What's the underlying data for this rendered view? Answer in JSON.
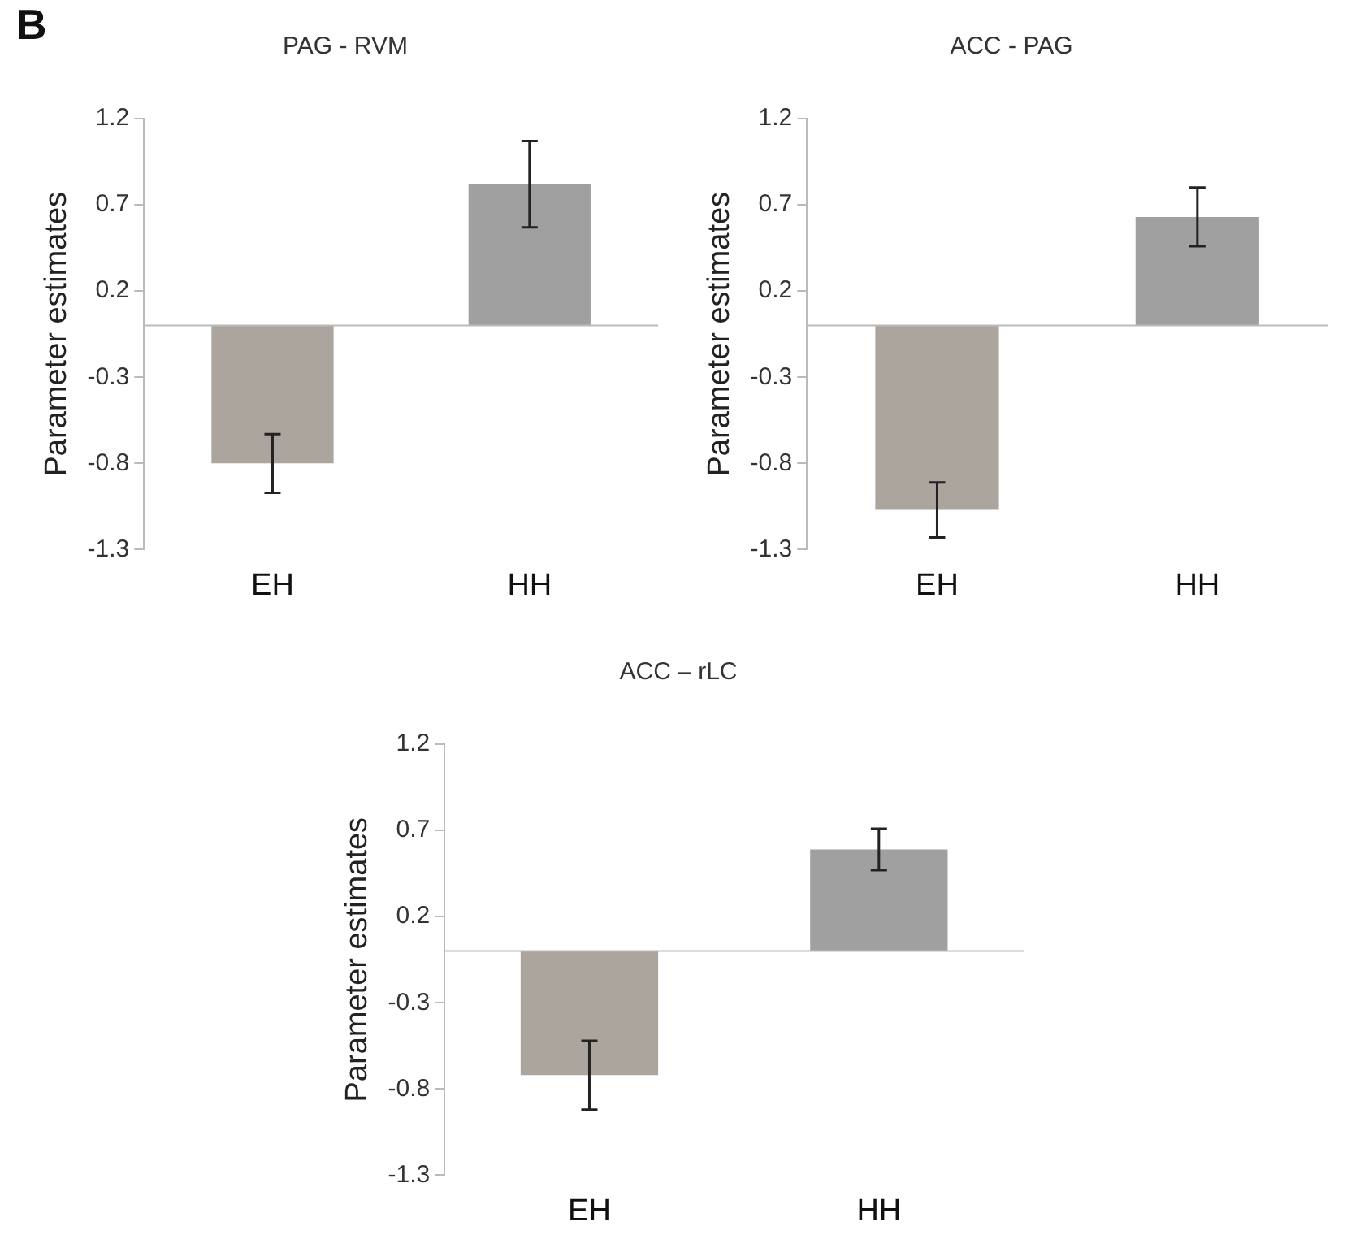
{
  "chart_data": [
    {
      "type": "bar",
      "title": "PAG - RVM",
      "ylabel": "Parameter estimates",
      "annotations": [
        "B"
      ],
      "categories": [
        "EH",
        "HH"
      ],
      "values": [
        -0.8,
        0.82
      ],
      "errors": [
        0.17,
        0.25
      ],
      "colors": [
        "#aba59e",
        "#a0a0a0"
      ],
      "ylim": [
        -1.3,
        1.2
      ],
      "yticks": [
        -1.3,
        -0.8,
        -0.3,
        0.2,
        0.7,
        1.2
      ],
      "grid": false,
      "legend": false
    },
    {
      "type": "bar",
      "title": "ACC - PAG",
      "ylabel": "Parameter estimates",
      "categories": [
        "EH",
        "HH"
      ],
      "values": [
        -1.07,
        0.63
      ],
      "errors": [
        0.16,
        0.17
      ],
      "colors": [
        "#aba59e",
        "#a0a0a0"
      ],
      "ylim": [
        -1.3,
        1.2
      ],
      "yticks": [
        -1.3,
        -0.8,
        -0.3,
        0.2,
        0.7,
        1.2
      ],
      "grid": false,
      "legend": false
    },
    {
      "type": "bar",
      "title": "ACC – rLC",
      "ylabel": "Parameter estimates",
      "categories": [
        "EH",
        "HH"
      ],
      "values": [
        -0.72,
        0.59
      ],
      "errors": [
        0.2,
        0.12
      ],
      "colors": [
        "#aba59e",
        "#a0a0a0"
      ],
      "ylim": [
        -1.3,
        1.2
      ],
      "yticks": [
        -1.3,
        -0.8,
        -0.3,
        0.2,
        0.7,
        1.2
      ],
      "grid": false,
      "legend": false
    }
  ]
}
